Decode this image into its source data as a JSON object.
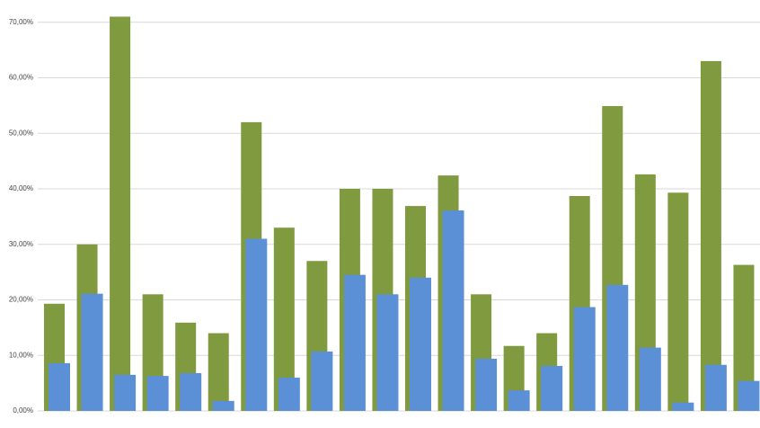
{
  "chart_data": {
    "type": "bar",
    "series": [
      {
        "color": "#7f9a3f",
        "values": [
          19.3,
          30.0,
          71.0,
          21.0,
          15.9,
          14.0,
          52.0,
          33.0,
          27.0,
          40.0,
          40.0,
          36.9,
          42.4,
          21.0,
          11.7,
          14.0,
          38.7,
          54.9,
          42.6,
          39.3,
          63.0,
          26.3
        ]
      },
      {
        "color": "#5b8fd6",
        "values": [
          8.6,
          21.1,
          6.5,
          6.3,
          6.8,
          1.8,
          31.0,
          6.0,
          10.7,
          24.5,
          21.0,
          24.0,
          36.1,
          9.4,
          3.7,
          8.1,
          18.7,
          22.7,
          11.4,
          1.5,
          8.3,
          5.4
        ]
      }
    ],
    "ylim": [
      0,
      74
    ],
    "yticks": [
      {
        "value": 0,
        "label": "0,00%"
      },
      {
        "value": 10,
        "label": "10,00%"
      },
      {
        "value": 20,
        "label": "20,00%"
      },
      {
        "value": 30,
        "label": "30,00%"
      },
      {
        "value": 40,
        "label": "40,00%"
      },
      {
        "value": 50,
        "label": "50,00%"
      },
      {
        "value": 60,
        "label": "60,00%"
      },
      {
        "value": 70,
        "label": "70,00%"
      }
    ],
    "grid": true
  }
}
